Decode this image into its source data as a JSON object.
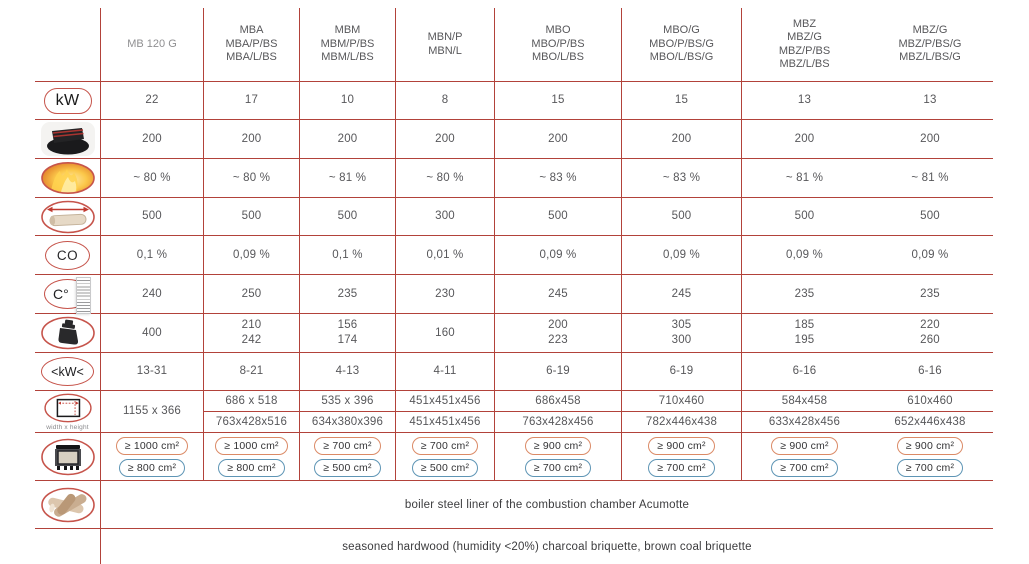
{
  "colors": {
    "line_red": "#b2423a",
    "icon_red": "#c6544b",
    "badge_orange": "#db8a66",
    "badge_blue": "#5e95b5",
    "text": "#57575a"
  },
  "columns": [
    {
      "lines": [
        "MB 120 G"
      ]
    },
    {
      "lines": [
        "MBA",
        "MBA/P/BS",
        "MBA/L/BS"
      ]
    },
    {
      "lines": [
        "MBM",
        "MBM/P/BS",
        "MBM/L/BS"
      ]
    },
    {
      "lines": [
        "MBN/P",
        "MBN/L"
      ]
    },
    {
      "lines": [
        "MBO",
        "MBO/P/BS",
        "MBO/L/BS"
      ]
    },
    {
      "lines": [
        "MBO/G",
        "MBO/P/BS/G",
        "MBO/L/BS/G"
      ]
    },
    {
      "lines": [
        "MBZ",
        "MBZ/G",
        "MBZ/P/BS",
        "MBZ/L/BS"
      ]
    },
    {
      "lines": [
        "MBZ/G",
        "MBZ/P/BS/G",
        "MBZ/L/BS/G"
      ]
    }
  ],
  "rows": [
    {
      "id": "nominal-power",
      "icon": "kw-icon",
      "icon_label": "kW",
      "cells": [
        [
          "22"
        ],
        [
          "17"
        ],
        [
          "10"
        ],
        [
          "8"
        ],
        [
          "15"
        ],
        [
          "15"
        ],
        [
          "13"
        ],
        [
          "13"
        ]
      ]
    },
    {
      "id": "flue-diameter",
      "icon": "flue-outlet-icon",
      "cells": [
        [
          "200"
        ],
        [
          "200"
        ],
        [
          "200"
        ],
        [
          "200"
        ],
        [
          "200"
        ],
        [
          "200"
        ],
        [
          "200"
        ],
        [
          "200"
        ]
      ]
    },
    {
      "id": "efficiency",
      "icon": "fire-icon",
      "cells": [
        [
          "~ 80 %"
        ],
        [
          "~ 80 %"
        ],
        [
          "~ 81 %"
        ],
        [
          "~ 80 %"
        ],
        [
          "~ 83 %"
        ],
        [
          "~ 83 %"
        ],
        [
          "~ 81 %"
        ],
        [
          "~ 81 %"
        ]
      ]
    },
    {
      "id": "max-log-length",
      "icon": "log-length-icon",
      "cells": [
        [
          "500"
        ],
        [
          "500"
        ],
        [
          "500"
        ],
        [
          "300"
        ],
        [
          "500"
        ],
        [
          "500"
        ],
        [
          "500"
        ],
        [
          "500"
        ]
      ]
    },
    {
      "id": "co-emission",
      "icon": "co-icon",
      "icon_label": "CO",
      "cells": [
        [
          "0,1 %"
        ],
        [
          "0,09 %"
        ],
        [
          "0,1 %"
        ],
        [
          "0,01 %"
        ],
        [
          "0,09 %"
        ],
        [
          "0,09 %"
        ],
        [
          "0,09 %"
        ],
        [
          "0,09 %"
        ]
      ]
    },
    {
      "id": "flue-gas-temperature",
      "icon": "temperature-icon",
      "icon_label": "C°",
      "cells": [
        [
          "240"
        ],
        [
          "250"
        ],
        [
          "235"
        ],
        [
          "230"
        ],
        [
          "245"
        ],
        [
          "245"
        ],
        [
          "235"
        ],
        [
          "235"
        ]
      ]
    },
    {
      "id": "weight",
      "icon": "weight-icon",
      "cells": [
        [
          "400"
        ],
        [
          "210",
          "242"
        ],
        [
          "156",
          "174"
        ],
        [
          "160"
        ],
        [
          "200",
          "223"
        ],
        [
          "305",
          "300"
        ],
        [
          "185",
          "195"
        ],
        [
          "220",
          "260"
        ]
      ]
    },
    {
      "id": "power-range",
      "icon": "kw-range-icon",
      "icon_label": "<kW<",
      "cells": [
        [
          "13-31"
        ],
        [
          "8-21"
        ],
        [
          "4-13"
        ],
        [
          "4-11"
        ],
        [
          "6-19"
        ],
        [
          "6-19"
        ],
        [
          "6-16"
        ],
        [
          "6-16"
        ]
      ]
    },
    {
      "id": "door-dimensions",
      "icon": "dimensions-icon",
      "icon_label": "width x height",
      "divider": true,
      "cells": [
        [
          "1155 x 366"
        ],
        [
          "686 x 518",
          "763x428x516"
        ],
        [
          "535 x 396",
          "634x380x396"
        ],
        [
          "451x451x456",
          "451x451x456"
        ],
        [
          "686x458",
          "763x428x456"
        ],
        [
          "710x460",
          "782x446x438"
        ],
        [
          "584x458",
          "633x428x456"
        ],
        [
          "610x460",
          "652x446x438"
        ]
      ]
    },
    {
      "id": "ventilation-grilles",
      "icon": "stove-icon",
      "badges": [
        {
          "top": "≥ 1000 cm²",
          "bottom": "≥ 800 cm²"
        },
        {
          "top": "≥ 1000 cm²",
          "bottom": "≥ 800 cm²"
        },
        {
          "top": "≥ 700 cm²",
          "bottom": "≥ 500 cm²"
        },
        {
          "top": "≥ 700 cm²",
          "bottom": "≥ 500 cm²"
        },
        {
          "top": "≥ 900 cm²",
          "bottom": "≥ 700 cm²"
        },
        {
          "top": "≥ 900 cm²",
          "bottom": "≥ 700 cm²"
        },
        {
          "top": "≥ 900 cm²",
          "bottom": "≥ 700 cm²"
        },
        {
          "top": "≥ 900 cm²",
          "bottom": "≥ 700 cm²"
        }
      ]
    },
    {
      "id": "combustion-chamber-liner",
      "icon": "logs-icon",
      "text": "boiler steel liner of the combustion chamber Acumotte"
    },
    {
      "id": "recommended-fuel",
      "icon": null,
      "text": "seasoned hardwood (humidity <20%) charcoal briquette, brown coal briquette"
    }
  ]
}
